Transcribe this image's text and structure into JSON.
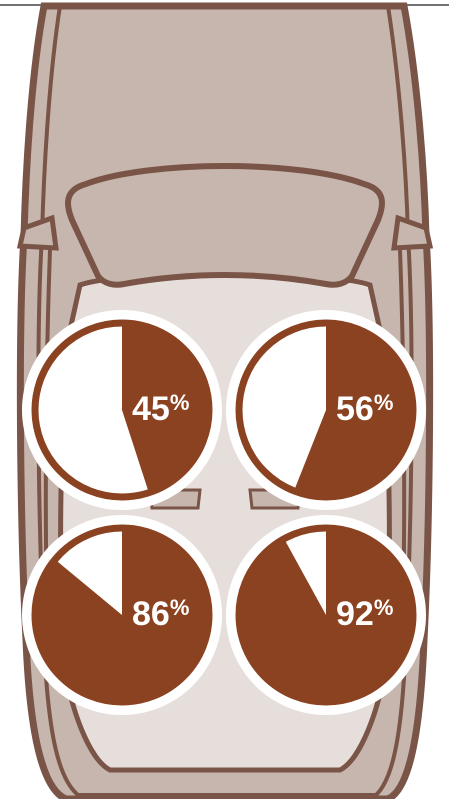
{
  "colors": {
    "car_body": "#c6b6ae",
    "car_outline": "#7a5446",
    "car_interior": "#e6dedb",
    "pie_fill": "#8b4220",
    "pie_empty": "#ffffff",
    "label": "#ffffff"
  },
  "chart_data": {
    "type": "pie",
    "title": "",
    "units": "%",
    "series": [
      {
        "position": "front-left",
        "value": 45,
        "label": "45%"
      },
      {
        "position": "front-right",
        "value": 56,
        "label": "56%"
      },
      {
        "position": "rear-left",
        "value": 86,
        "label": "86%"
      },
      {
        "position": "rear-right",
        "value": 92,
        "label": "92%"
      }
    ]
  }
}
